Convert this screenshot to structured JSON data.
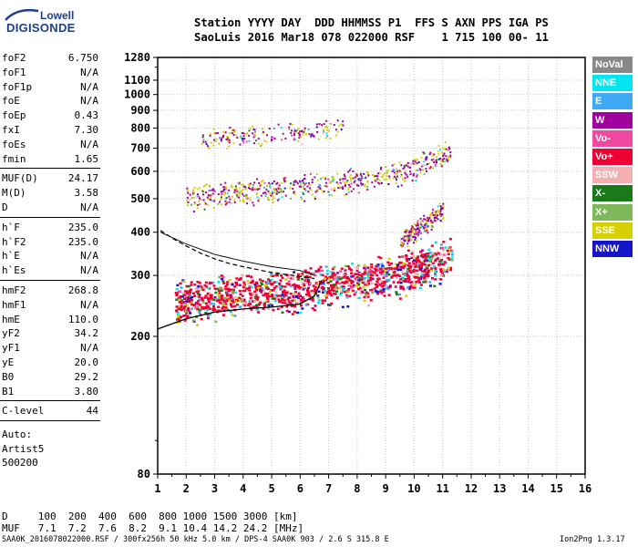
{
  "logo": {
    "top": "Lowell",
    "main": "DIGISONDE",
    "color": "#1d3f8f"
  },
  "header": {
    "line1": "Station YYYY DAY  DDD HHMMSS P1  FFS S AXN PPS IGA PS",
    "line2": "SaoLuis 2016 Mar18 078 022000 RSF    1 715 100 00- 11"
  },
  "params1": [
    {
      "k": "foF2",
      "v": "6.750"
    },
    {
      "k": "foF1",
      "v": "N/A"
    },
    {
      "k": "foF1p",
      "v": "N/A"
    },
    {
      "k": "foE",
      "v": "N/A"
    },
    {
      "k": "foEp",
      "v": "0.43"
    },
    {
      "k": "fxI",
      "v": "7.30"
    },
    {
      "k": "foEs",
      "v": "N/A"
    },
    {
      "k": "fmin",
      "v": "1.65"
    }
  ],
  "params2": [
    {
      "k": "MUF(D)",
      "v": "24.17"
    },
    {
      "k": "M(D)",
      "v": "3.58"
    },
    {
      "k": "D",
      "v": "N/A"
    }
  ],
  "params3": [
    {
      "k": "h`F",
      "v": "235.0"
    },
    {
      "k": "h`F2",
      "v": "235.0"
    },
    {
      "k": "h`E",
      "v": "N/A"
    },
    {
      "k": "h`Es",
      "v": "N/A"
    }
  ],
  "params4": [
    {
      "k": "hmF2",
      "v": "268.8"
    },
    {
      "k": "hmF1",
      "v": "N/A"
    },
    {
      "k": "hmE",
      "v": "110.0"
    },
    {
      "k": "yF2",
      "v": "34.2"
    },
    {
      "k": "yF1",
      "v": "N/A"
    },
    {
      "k": "yE",
      "v": "20.0"
    },
    {
      "k": "B0",
      "v": "29.2"
    },
    {
      "k": "B1",
      "v": "3.80"
    }
  ],
  "clevel": {
    "k": "C-level",
    "v": "44"
  },
  "auto": [
    "Auto:",
    "Artist5",
    "500200"
  ],
  "legend": [
    {
      "label": "NoVal",
      "color": "#888888"
    },
    {
      "label": "NNE",
      "color": "#00e5ee"
    },
    {
      "label": "E",
      "color": "#3fa9f5"
    },
    {
      "label": "W",
      "color": "#a0009b"
    },
    {
      "label": "Vo-",
      "color": "#f04aa0"
    },
    {
      "label": "Vo+",
      "color": "#ee0033"
    },
    {
      "label": "SSW",
      "color": "#f4b0b0"
    },
    {
      "label": "X-",
      "color": "#1a7a1a"
    },
    {
      "label": "X+",
      "color": "#7fb85a"
    },
    {
      "label": "SSE",
      "color": "#d6d000"
    },
    {
      "label": "NNW",
      "color": "#1414c8"
    }
  ],
  "footer": {
    "d_line": "D     100  200  400  600  800 1000 1500 3000 [km]",
    "muf_line": "MUF   7.1  7.2  7.6  8.2  9.1 10.4 14.2 24.2 [MHz]",
    "info": "SAA0K_2016078022000.RSF / 300fx256h 50 kHz 5.0 km / DPS-4 SAA0K 903 / 2.6 S 315.8 E",
    "version": "Ion2Png 1.3.17"
  },
  "chart_data": {
    "type": "scatter",
    "xticks": [
      1,
      2,
      3,
      4,
      5,
      6,
      7,
      8,
      9,
      10,
      11,
      12,
      13,
      14,
      15,
      16
    ],
    "yticks": [
      80,
      200,
      300,
      400,
      500,
      600,
      700,
      800,
      900,
      1000,
      1100,
      1280
    ],
    "xlim": [
      1,
      16
    ],
    "ylim": [
      80,
      1280
    ],
    "yscale": "log",
    "grid": true,
    "traces": [
      {
        "name": "F-trace",
        "x": [
          1.6,
          2,
          2.5,
          3,
          3.5,
          4,
          4.5,
          5,
          5.5,
          6,
          6.5,
          7,
          7.5,
          8,
          8.5,
          9,
          9.5,
          10,
          10.5,
          11,
          11.3
        ],
        "y": [
          250,
          255,
          258,
          262,
          264,
          266,
          268,
          270,
          272,
          275,
          278,
          282,
          285,
          288,
          292,
          298,
          305,
          315,
          325,
          335,
          345
        ]
      },
      {
        "name": "2F-trace",
        "x": [
          2,
          2.5,
          3,
          3.5,
          4,
          4.5,
          5,
          5.5,
          6,
          6.5,
          7,
          7.5,
          8,
          8.5,
          9,
          9.5,
          10,
          10.5,
          11,
          11.3
        ],
        "y": [
          500,
          510,
          515,
          520,
          525,
          530,
          535,
          540,
          545,
          550,
          555,
          560,
          565,
          575,
          585,
          600,
          620,
          640,
          670,
          700
        ]
      },
      {
        "name": "3F-trace",
        "x": [
          2.5,
          3,
          3.5,
          4,
          4.5,
          5,
          5.5,
          6,
          6.5,
          7,
          7.5
        ],
        "y": [
          740,
          750,
          755,
          760,
          765,
          770,
          775,
          780,
          790,
          800,
          820
        ]
      },
      {
        "name": "upper-trace",
        "x": [
          9.5,
          10,
          10.5,
          11
        ],
        "y": [
          380,
          400,
          430,
          470
        ]
      }
    ],
    "profile_curve": {
      "x": [
        1,
        2,
        3,
        4,
        5,
        6,
        6.5,
        6.75
      ],
      "y": [
        210,
        225,
        235,
        240,
        243,
        248,
        262,
        290
      ]
    },
    "dashed_curve": {
      "x": [
        1.1,
        1.5,
        2,
        2.5,
        3,
        3.5,
        4,
        4.5,
        5,
        5.5,
        6,
        6.5
      ],
      "y": [
        405,
        385,
        365,
        348,
        335,
        325,
        318,
        312,
        306,
        302,
        298,
        294
      ]
    },
    "solid_curve2": {
      "x": [
        1.1,
        2,
        3,
        4,
        5,
        6,
        6.5
      ],
      "y": [
        400,
        370,
        345,
        330,
        318,
        310,
        300
      ]
    }
  }
}
